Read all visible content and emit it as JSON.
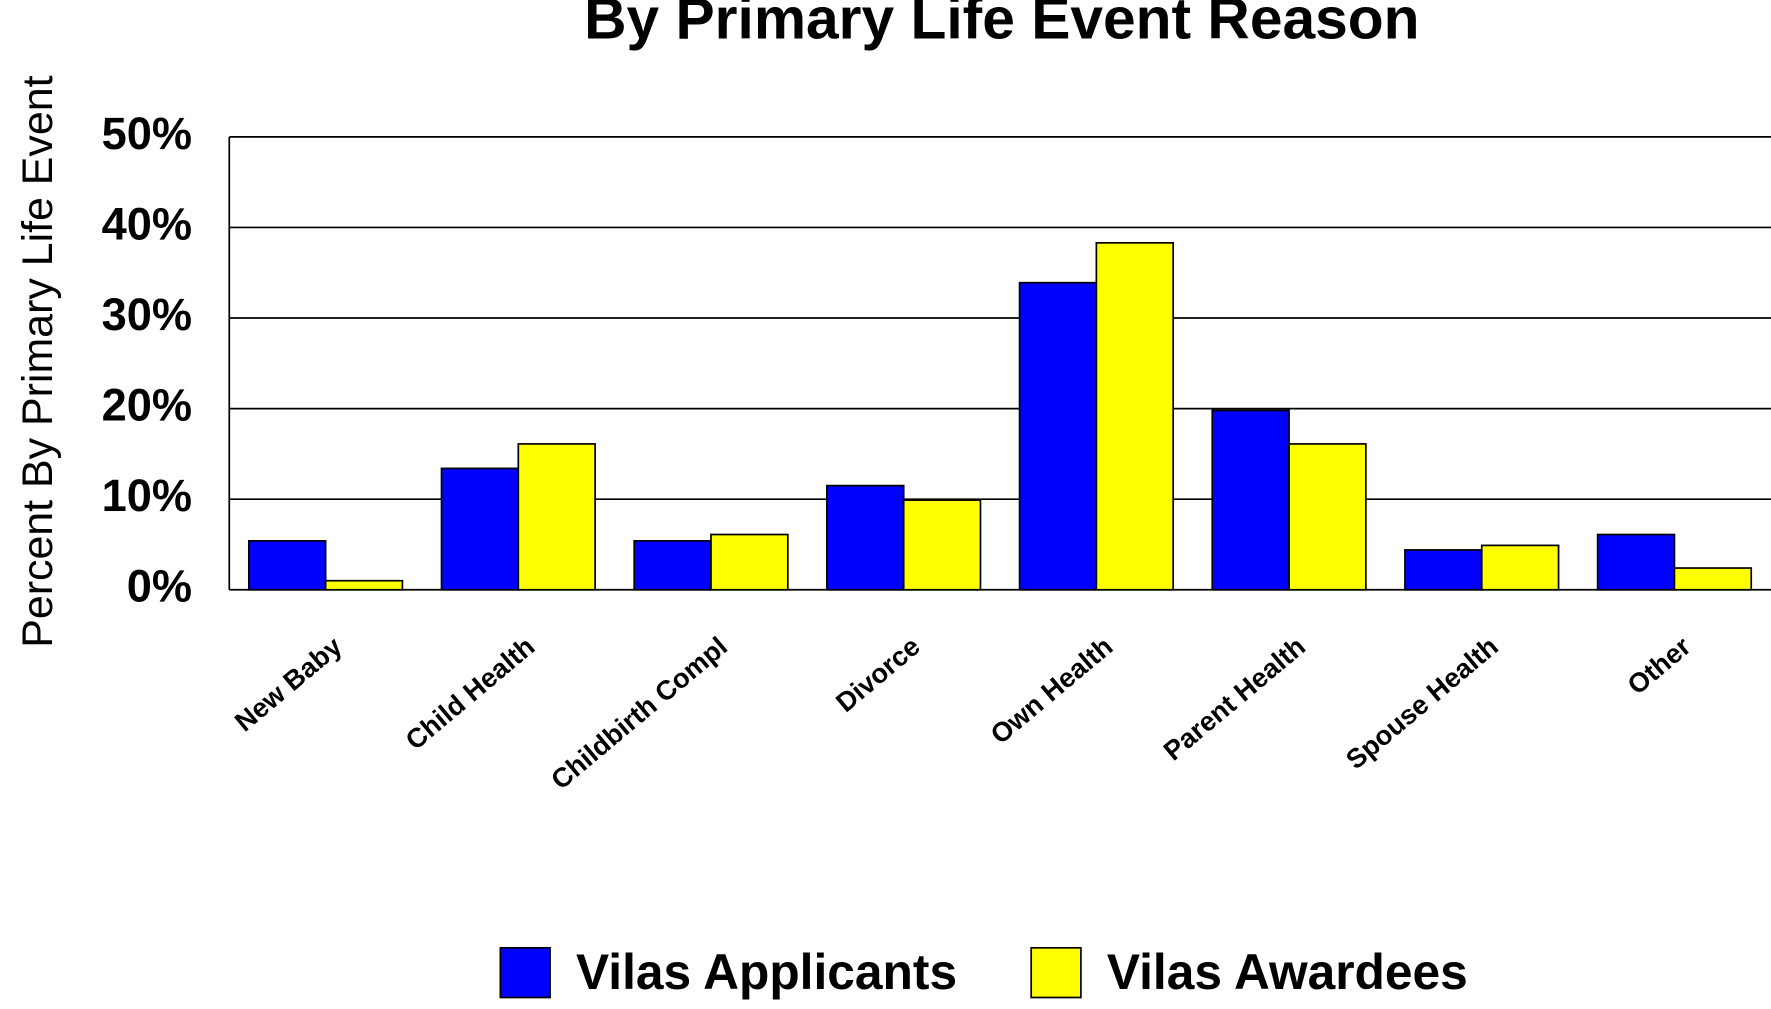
{
  "chart_data": {
    "type": "bar",
    "title": "By Primary Life Event Reason",
    "y_label": "Percent By Primary Life Event",
    "categories": [
      "New Baby",
      "Child Health",
      "Childbirth Compl",
      "Divorce",
      "Own Health",
      "Parent Health",
      "Spouse Health",
      "Other"
    ],
    "series": [
      {
        "name": "Vilas Applicants",
        "color": "#0000ff",
        "values": [
          5.4,
          13.4,
          5.4,
          11.5,
          33.9,
          19.8,
          4.4,
          6.1
        ]
      },
      {
        "name": "Vilas Awardees",
        "color": "#ffff00",
        "values": [
          1.0,
          16.1,
          6.1,
          9.9,
          38.3,
          16.1,
          4.9,
          2.4
        ]
      }
    ],
    "ylim": [
      0,
      50
    ],
    "yticks": [
      {
        "value": 0,
        "label": "0%"
      },
      {
        "value": 10,
        "label": "10%"
      },
      {
        "value": 20,
        "label": "20%"
      },
      {
        "value": 30,
        "label": "30%"
      },
      {
        "value": 40,
        "label": "40%"
      },
      {
        "value": 50,
        "label": "50%"
      }
    ],
    "grid": true,
    "legend": "bottom"
  }
}
